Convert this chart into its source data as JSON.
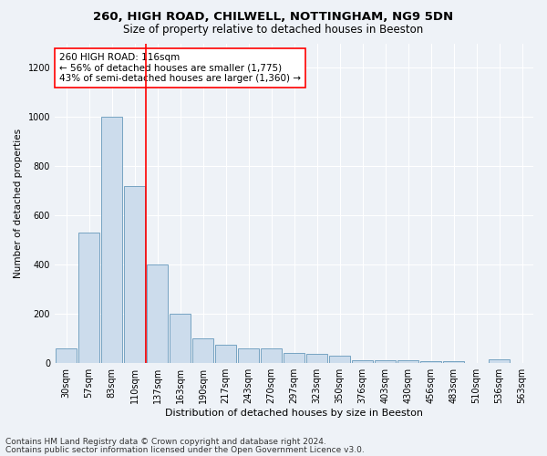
{
  "title1": "260, HIGH ROAD, CHILWELL, NOTTINGHAM, NG9 5DN",
  "title2": "Size of property relative to detached houses in Beeston",
  "xlabel": "Distribution of detached houses by size in Beeston",
  "ylabel": "Number of detached properties",
  "categories": [
    "30sqm",
    "57sqm",
    "83sqm",
    "110sqm",
    "137sqm",
    "163sqm",
    "190sqm",
    "217sqm",
    "243sqm",
    "270sqm",
    "297sqm",
    "323sqm",
    "350sqm",
    "376sqm",
    "403sqm",
    "430sqm",
    "456sqm",
    "483sqm",
    "510sqm",
    "536sqm",
    "563sqm"
  ],
  "values": [
    60,
    530,
    1000,
    720,
    400,
    200,
    100,
    75,
    60,
    60,
    40,
    35,
    30,
    10,
    10,
    10,
    5,
    5,
    0,
    15,
    0
  ],
  "bar_color": "#ccdcec",
  "bar_edge_color": "#6699bb",
  "vline_index": 3.5,
  "vline_color": "red",
  "annotation_text": "260 HIGH ROAD: 116sqm\n← 56% of detached houses are smaller (1,775)\n43% of semi-detached houses are larger (1,360) →",
  "annotation_box_color": "white",
  "annotation_box_edge_color": "red",
  "ylim": [
    0,
    1300
  ],
  "yticks": [
    0,
    200,
    400,
    600,
    800,
    1000,
    1200
  ],
  "background_color": "#eef2f7",
  "grid_color": "white",
  "footer1": "Contains HM Land Registry data © Crown copyright and database right 2024.",
  "footer2": "Contains public sector information licensed under the Open Government Licence v3.0.",
  "title1_fontsize": 9.5,
  "title2_fontsize": 8.5,
  "xlabel_fontsize": 8,
  "ylabel_fontsize": 7.5,
  "tick_fontsize": 7,
  "annotation_fontsize": 7.5,
  "footer_fontsize": 6.5
}
